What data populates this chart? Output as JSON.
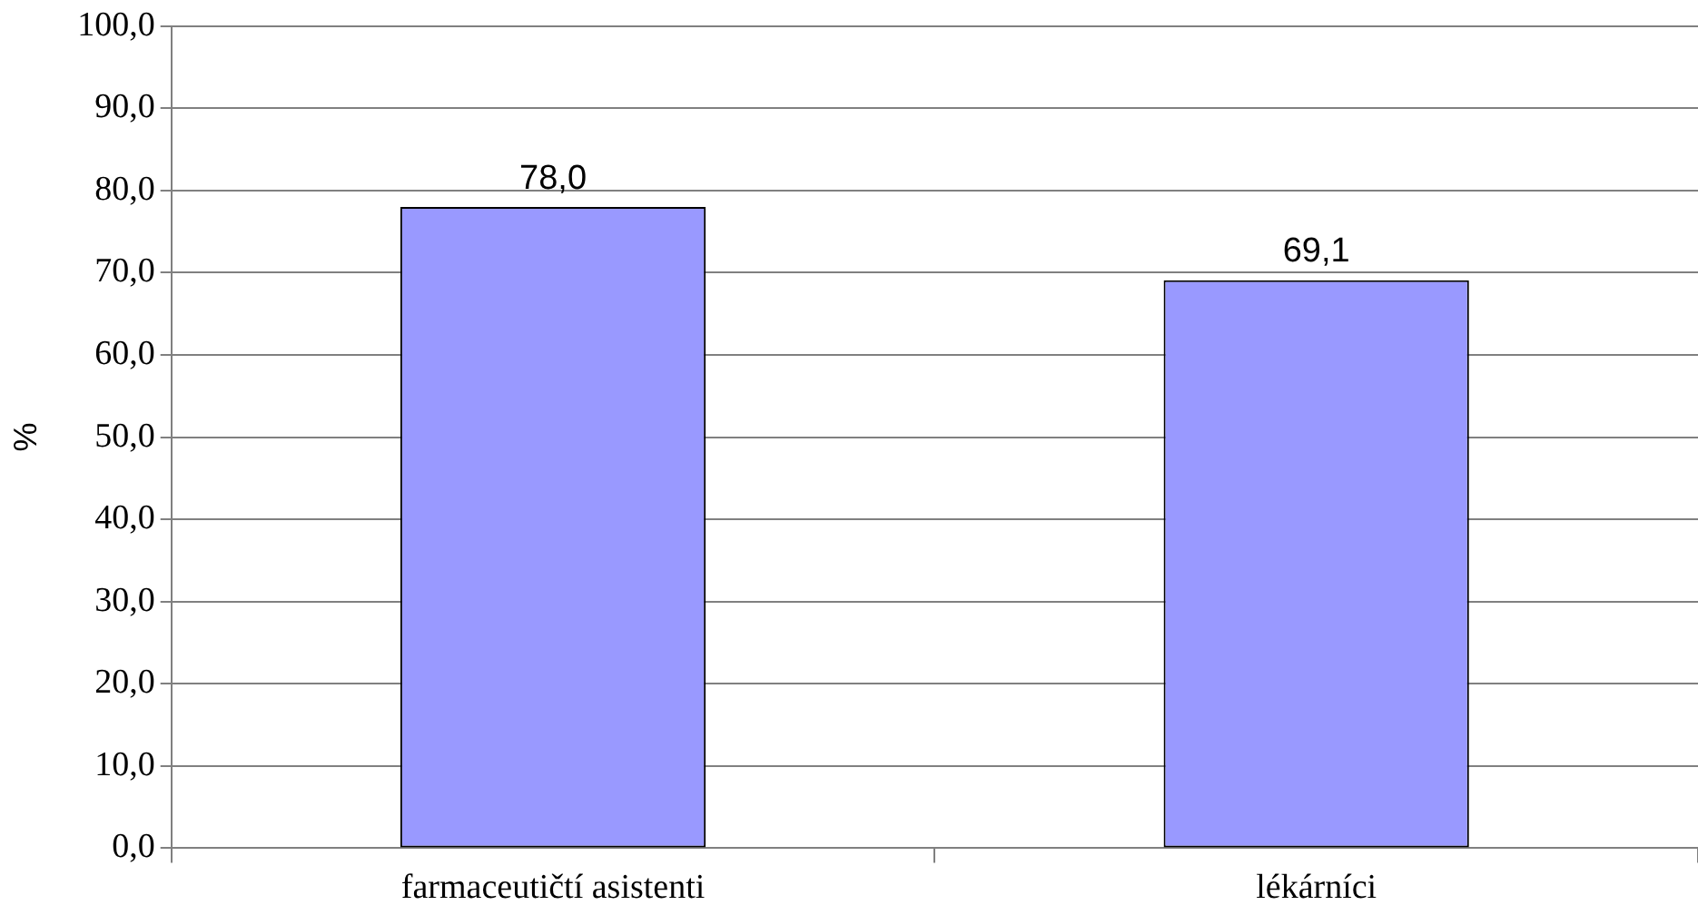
{
  "chart_data": {
    "type": "bar",
    "ylabel": "%",
    "categories": [
      "farmaceutičtí asistenti",
      "lékárníci"
    ],
    "values": [
      78.0,
      69.1
    ],
    "value_labels": [
      "78,0",
      "69,1"
    ],
    "color": "#9999ff",
    "ylim": [
      0,
      100
    ],
    "yticks": [
      {
        "value": 0,
        "label": "0,0"
      },
      {
        "value": 10,
        "label": "10,0"
      },
      {
        "value": 20,
        "label": "20,0"
      },
      {
        "value": 30,
        "label": "30,0"
      },
      {
        "value": 40,
        "label": "40,0"
      },
      {
        "value": 50,
        "label": "50,0"
      },
      {
        "value": 60,
        "label": "60,0"
      },
      {
        "value": 70,
        "label": "70,0"
      },
      {
        "value": 80,
        "label": "80,0"
      },
      {
        "value": 90,
        "label": "90,0"
      },
      {
        "value": 100,
        "label": "100,0"
      }
    ],
    "grid": "y",
    "legend": false
  }
}
